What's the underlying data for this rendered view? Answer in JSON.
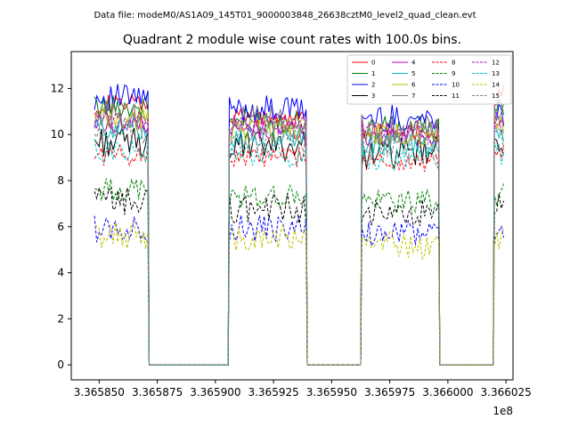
{
  "figure": {
    "suptitle": "Data file: modeM0/AS1A09_145T01_9000003848_26638cztM0_level2_quad_clean.evt"
  },
  "chart_data": {
    "type": "line",
    "title": "Quadrant 2 module wise count rates with 100.0s bins.",
    "xlabel": "",
    "ylabel": "",
    "x_offset_label": "1e8",
    "xlim": [
      3.365838,
      3.366028
    ],
    "ylim": [
      -0.65,
      13.6
    ],
    "xticks": [
      3.36585,
      3.365875,
      3.3659,
      3.365925,
      3.36595,
      3.365975,
      3.366,
      3.366025
    ],
    "xtick_labels": [
      "3.365850",
      "3.365875",
      "3.365900",
      "3.365925",
      "3.365950",
      "3.365975",
      "3.366000",
      "3.366025"
    ],
    "yticks": [
      0,
      2,
      4,
      6,
      8,
      10,
      12
    ],
    "ytick_labels": [
      "0",
      "2",
      "4",
      "6",
      "8",
      "10",
      "12"
    ],
    "grid": false,
    "legend_position": "top-right",
    "legend_columns": 4,
    "segments": [
      {
        "start": 3.365848,
        "end": 3.365871
      },
      {
        "start": 3.365906,
        "end": 3.365939
      },
      {
        "start": 3.365963,
        "end": 3.365996
      },
      {
        "start": 3.36602,
        "end": 3.366024
      }
    ],
    "bin_width": 1e-06,
    "series": [
      {
        "name": "0",
        "color": "#ff0000",
        "dash": "solid",
        "levels": [
          11.3,
          10.7,
          10.2,
          11.7
        ]
      },
      {
        "name": "1",
        "color": "#008000",
        "dash": "solid",
        "levels": [
          11.2,
          10.6,
          10.3,
          11.0
        ]
      },
      {
        "name": "2",
        "color": "#0000ff",
        "dash": "solid",
        "levels": [
          11.6,
          11.1,
          10.7,
          10.9
        ]
      },
      {
        "name": "3",
        "color": "#000000",
        "dash": "solid",
        "levels": [
          9.7,
          9.5,
          9.2,
          9.8
        ]
      },
      {
        "name": "4",
        "color": "#bf00bf",
        "dash": "solid",
        "levels": [
          10.5,
          10.2,
          9.9,
          10.4
        ]
      },
      {
        "name": "5",
        "color": "#00bfbf",
        "dash": "solid",
        "levels": [
          10.3,
          9.9,
          9.6,
          10.1
        ]
      },
      {
        "name": "6",
        "color": "#bfbf00",
        "dash": "solid",
        "levels": [
          10.6,
          10.3,
          10.0,
          10.5
        ]
      },
      {
        "name": "7",
        "color": "#808080",
        "dash": "solid",
        "levels": [
          10.9,
          10.6,
          10.2,
          10.7
        ]
      },
      {
        "name": "8",
        "color": "#ff0000",
        "dash": "dashed",
        "levels": [
          9.1,
          9.0,
          8.8,
          9.2
        ]
      },
      {
        "name": "9",
        "color": "#008000",
        "dash": "dashed",
        "levels": [
          7.6,
          7.3,
          7.1,
          7.4
        ]
      },
      {
        "name": "10",
        "color": "#0000ff",
        "dash": "dashed",
        "levels": [
          5.9,
          5.9,
          5.7,
          5.8
        ]
      },
      {
        "name": "11",
        "color": "#000000",
        "dash": "dashed",
        "levels": [
          7.1,
          6.8,
          6.5,
          6.8
        ]
      },
      {
        "name": "12",
        "color": "#bf00bf",
        "dash": "dashed",
        "levels": [
          10.6,
          10.4,
          10.2,
          10.5
        ]
      },
      {
        "name": "13",
        "color": "#00bfbf",
        "dash": "dashed",
        "levels": [
          9.3,
          9.1,
          8.9,
          9.2
        ]
      },
      {
        "name": "14",
        "color": "#bfbf00",
        "dash": "dashed",
        "levels": [
          5.6,
          5.5,
          5.2,
          5.5
        ]
      },
      {
        "name": "15",
        "color": "#808080",
        "dash": "dashed",
        "levels": [
          10.1,
          9.8,
          9.6,
          9.9
        ]
      }
    ]
  }
}
